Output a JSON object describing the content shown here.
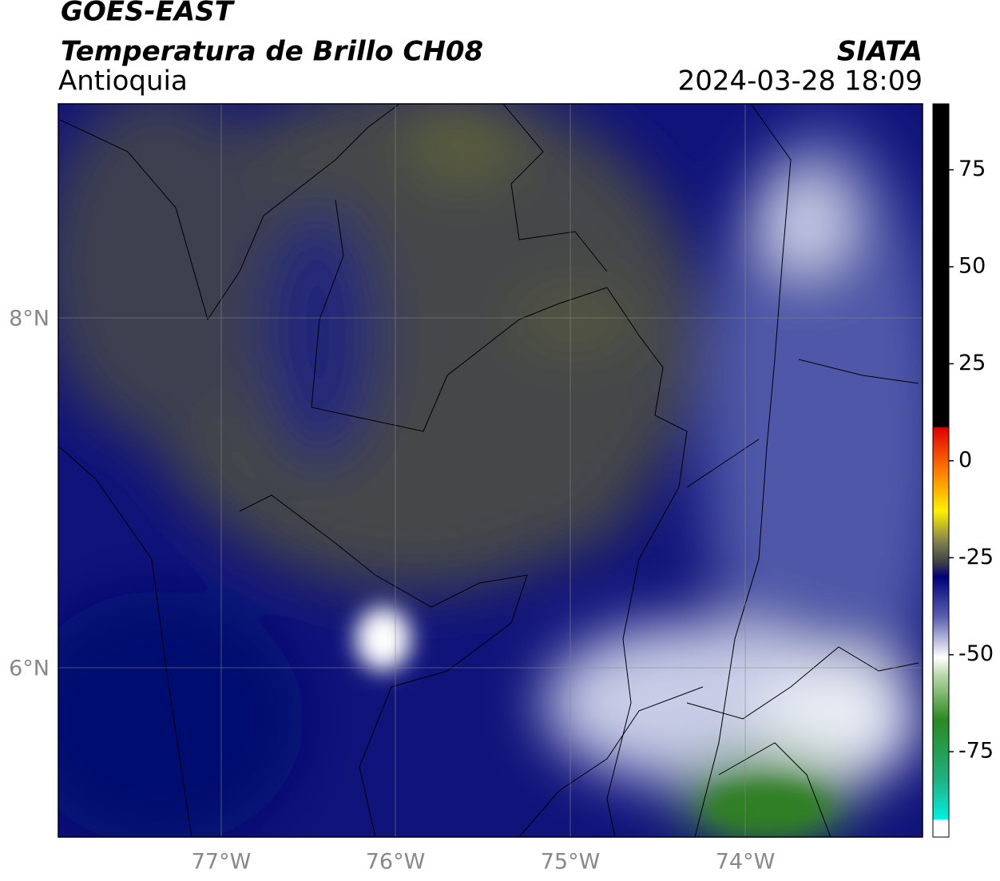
{
  "header": {
    "title": "GOES-EAST",
    "subtitle": "Temperatura de Brillo CH08",
    "region": "Antioquia",
    "source": "SIATA",
    "datetime": "2024-03-28 18:09"
  },
  "map": {
    "lat_labels": [
      "8°N",
      "6°N"
    ],
    "lon_labels": [
      "77°W",
      "76°W",
      "75°W",
      "74°W"
    ]
  },
  "colorbar": {
    "lim": [
      -97,
      92
    ],
    "ticks": [
      75,
      50,
      25,
      0,
      -25,
      -50,
      -75
    ]
  }
}
